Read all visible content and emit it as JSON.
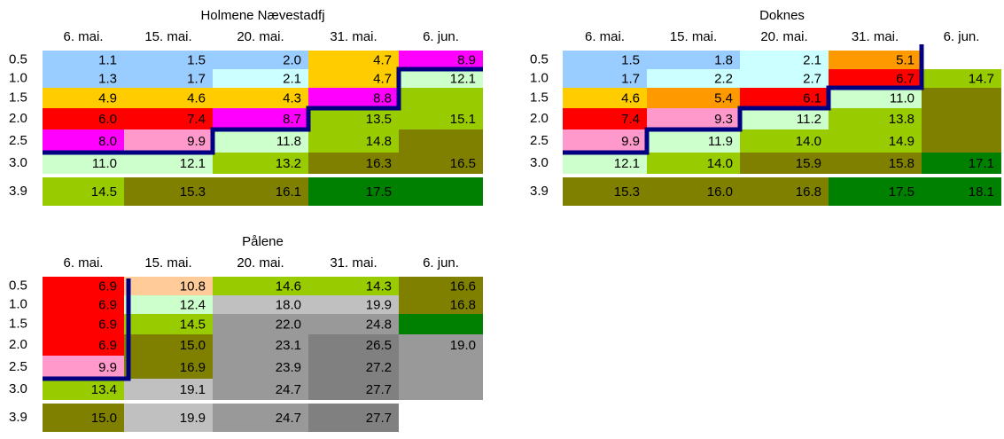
{
  "tables": [
    {
      "title": "Holmene Nævestadfj",
      "columns": [
        "6. mai.",
        "15. mai.",
        "20. mai.",
        "31. mai.",
        "6. jun."
      ],
      "rows": [
        {
          "depth": "0.5",
          "cells": [
            "1.1",
            "1.5",
            "2.0",
            "4.7",
            "8.9"
          ],
          "colors": [
            "#99ccff",
            "#99ccff",
            "#99ccff",
            "#ffcc00",
            "#ff00ff"
          ]
        },
        {
          "depth": "1.0",
          "cells": [
            "1.3",
            "1.7",
            "2.1",
            "4.7",
            "12.1"
          ],
          "colors": [
            "#99ccff",
            "#99ccff",
            "#ccffff",
            "#ffcc00",
            "#ccffcc"
          ]
        },
        {
          "depth": "1.5",
          "cells": [
            "4.9",
            "4.6",
            "4.3",
            "8.8",
            null
          ],
          "colors": [
            "#ffcc00",
            "#ffcc00",
            "#ffcc00",
            "#ff00ff",
            "#99cc00"
          ]
        },
        {
          "depth": "2.0",
          "cells": [
            "6.0",
            "7.4",
            "8.7",
            "13.5",
            "15.1"
          ],
          "colors": [
            "#ff0000",
            "#ff0000",
            "#ff00ff",
            "#99cc00",
            "#99cc00"
          ]
        },
        {
          "depth": "2.5",
          "cells": [
            "8.0",
            "9.9",
            "11.8",
            "14.8",
            null
          ],
          "colors": [
            "#ff00ff",
            "#ff99cc",
            "#ccffcc",
            "#99cc00",
            "#808000"
          ]
        },
        {
          "depth": "3.0",
          "cells": [
            "11.0",
            "12.1",
            "13.2",
            "16.3",
            "16.5"
          ],
          "colors": [
            "#ccffcc",
            "#ccffcc",
            "#99cc00",
            "#808000",
            "#808000"
          ]
        },
        {
          "depth": "3.9",
          "cells": [
            "14.5",
            "15.3",
            "16.1",
            "17.5",
            null
          ],
          "colors": [
            "#99cc00",
            "#808000",
            "#808000",
            "#008000",
            "#008000"
          ]
        }
      ]
    },
    {
      "title": "Doknes",
      "columns": [
        "6. mai.",
        "15. mai.",
        "20. mai.",
        "31. mai.",
        "6. jun."
      ],
      "rows": [
        {
          "depth": "0.5",
          "cells": [
            "1.5",
            "1.8",
            "2.1",
            "5.1",
            null
          ],
          "colors": [
            "#99ccff",
            "#99ccff",
            "#ccffff",
            "#ff9900",
            "#ffffff"
          ]
        },
        {
          "depth": "1.0",
          "cells": [
            "1.7",
            "2.2",
            "2.7",
            "6.7",
            "14.7"
          ],
          "colors": [
            "#99ccff",
            "#ccffff",
            "#ccffff",
            "#ff0000",
            "#99cc00"
          ]
        },
        {
          "depth": "1.5",
          "cells": [
            "4.6",
            "5.4",
            "6.1",
            "11.0",
            null
          ],
          "colors": [
            "#ffcc00",
            "#ff9900",
            "#ff0000",
            "#ccffcc",
            "#808000"
          ]
        },
        {
          "depth": "2.0",
          "cells": [
            "7.4",
            "9.3",
            "11.2",
            "13.8",
            null
          ],
          "colors": [
            "#ff0000",
            "#ff99cc",
            "#ccffcc",
            "#99cc00",
            "#808000"
          ]
        },
        {
          "depth": "2.5",
          "cells": [
            "9.9",
            "11.9",
            "14.0",
            "14.9",
            null
          ],
          "colors": [
            "#ff99cc",
            "#ccffcc",
            "#99cc00",
            "#99cc00",
            "#808000"
          ]
        },
        {
          "depth": "3.0",
          "cells": [
            "12.1",
            "14.0",
            "15.9",
            "15.8",
            "17.1"
          ],
          "colors": [
            "#ccffcc",
            "#99cc00",
            "#808000",
            "#808000",
            "#008000"
          ]
        },
        {
          "depth": "3.9",
          "cells": [
            "15.3",
            "16.0",
            "16.8",
            "17.5",
            "18.1"
          ],
          "colors": [
            "#808000",
            "#808000",
            "#808000",
            "#008000",
            "#008000"
          ]
        }
      ]
    },
    {
      "title": "Pålene",
      "columns": [
        "6. mai.",
        "15. mai.",
        "20. mai.",
        "31. mai.",
        "6. jun."
      ],
      "rows": [
        {
          "depth": "0.5",
          "cells": [
            "6.9",
            "10.8",
            "14.6",
            "14.3",
            "16.6"
          ],
          "colors": [
            "#ff0000",
            "#ffcc99",
            "#99cc00",
            "#99cc00",
            "#808000"
          ]
        },
        {
          "depth": "1.0",
          "cells": [
            "6.9",
            "12.4",
            "18.0",
            "19.9",
            "16.8"
          ],
          "colors": [
            "#ff0000",
            "#ccffcc",
            "#c0c0c0",
            "#c0c0c0",
            "#808000"
          ]
        },
        {
          "depth": "1.5",
          "cells": [
            "6.9",
            "14.5",
            "22.0",
            "24.8",
            null
          ],
          "colors": [
            "#ff0000",
            "#99cc00",
            "#999999",
            "#999999",
            "#008000"
          ]
        },
        {
          "depth": "2.0",
          "cells": [
            "6.9",
            "15.0",
            "23.1",
            "26.5",
            "19.0"
          ],
          "colors": [
            "#ff0000",
            "#808000",
            "#999999",
            "#808080",
            "#999999"
          ]
        },
        {
          "depth": "2.5",
          "cells": [
            "9.9",
            "16.9",
            "23.9",
            "27.2",
            null
          ],
          "colors": [
            "#ff99cc",
            "#808000",
            "#999999",
            "#808080",
            "#999999"
          ]
        },
        {
          "depth": "3.0",
          "cells": [
            "13.4",
            "19.1",
            "24.7",
            "27.7",
            null
          ],
          "colors": [
            "#99cc00",
            "#c0c0c0",
            "#999999",
            "#808080",
            "#999999"
          ]
        },
        {
          "depth": "3.9",
          "cells": [
            "15.0",
            "19.9",
            "24.7",
            "27.7",
            null
          ],
          "colors": [
            "#808000",
            "#c0c0c0",
            "#999999",
            "#808080",
            "#ffffff"
          ]
        }
      ]
    }
  ]
}
